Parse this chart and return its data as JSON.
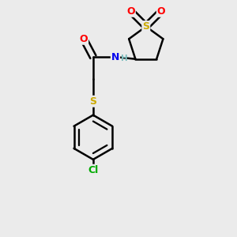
{
  "background_color": "#ebebeb",
  "atom_colors": {
    "C": "#000000",
    "H": "#7fbfbf",
    "N": "#0000ee",
    "O": "#ff0000",
    "S": "#ccaa00",
    "Cl": "#00aa00"
  },
  "bond_color": "#000000",
  "bond_width": 1.8,
  "figsize": [
    3.0,
    3.0
  ],
  "dpi": 100
}
